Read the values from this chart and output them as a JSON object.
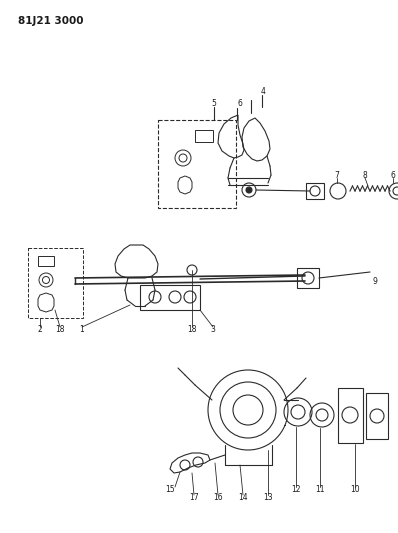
{
  "title": "81J21 3000",
  "bg": "#ffffff",
  "lc": "#2a2a2a",
  "tc": "#1a1a1a",
  "figsize": [
    3.98,
    5.33
  ],
  "dpi": 100
}
